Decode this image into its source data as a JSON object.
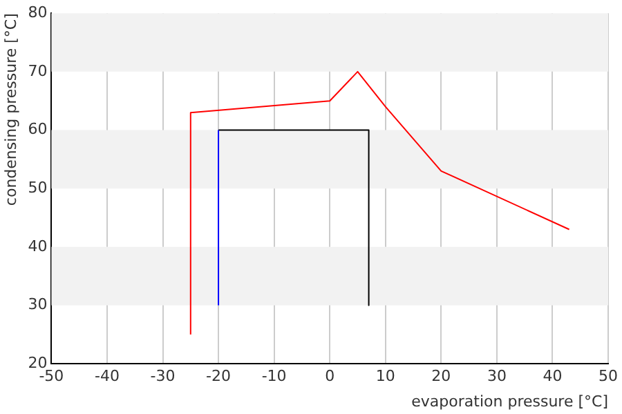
{
  "chart_data": {
    "type": "line",
    "xlabel": "evaporation pressure [°C]",
    "ylabel": "condensing pressure [°C]",
    "series": [
      {
        "color": "#ff0000",
        "x": [
          -25,
          -25,
          0,
          5,
          10,
          20,
          43
        ],
        "values": [
          25,
          63,
          65,
          70,
          64,
          53,
          43
        ]
      },
      {
        "color": "#0000ff",
        "x": [
          -20,
          -20
        ],
        "values": [
          30,
          60
        ]
      },
      {
        "color": "#000000",
        "x": [
          -20,
          7,
          7
        ],
        "values": [
          60,
          60,
          30
        ]
      }
    ],
    "xlim": [
      -50,
      50
    ],
    "xticks": [
      -50,
      -40,
      -30,
      -20,
      -10,
      0,
      10,
      20,
      30,
      40,
      50
    ],
    "ylim": [
      20,
      80
    ],
    "yticks": [
      20,
      30,
      40,
      50,
      60,
      70,
      80
    ],
    "grid": true,
    "legend": false,
    "marker": "none",
    "line_style": "solid"
  }
}
